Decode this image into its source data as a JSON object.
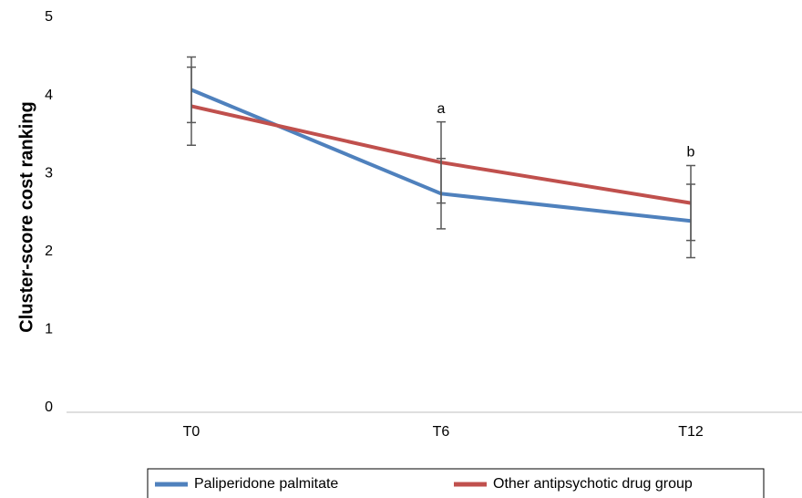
{
  "chart_data": {
    "type": "line",
    "y_label": "Cluster-score cost ranking",
    "categories": [
      "T0",
      "T6",
      "T12"
    ],
    "series": [
      {
        "name": "Paliperidone palmitate",
        "color": "#4f81bd",
        "values": [
          4.13,
          2.8,
          2.45
        ],
        "errors": [
          0.42,
          0.45,
          0.47
        ]
      },
      {
        "name": "Other antipsychotic drug group",
        "color": "#c0504d",
        "values": [
          3.92,
          3.2,
          2.68
        ],
        "errors": [
          0.5,
          0.52,
          0.48
        ]
      }
    ],
    "annotations": [
      {
        "text": "a",
        "category": "T6"
      },
      {
        "text": "b",
        "category": "T12"
      }
    ],
    "ylim": [
      0,
      5
    ],
    "yticks": [
      0,
      1,
      2,
      3,
      4,
      5
    ],
    "grid": false,
    "legend": "bottom"
  }
}
